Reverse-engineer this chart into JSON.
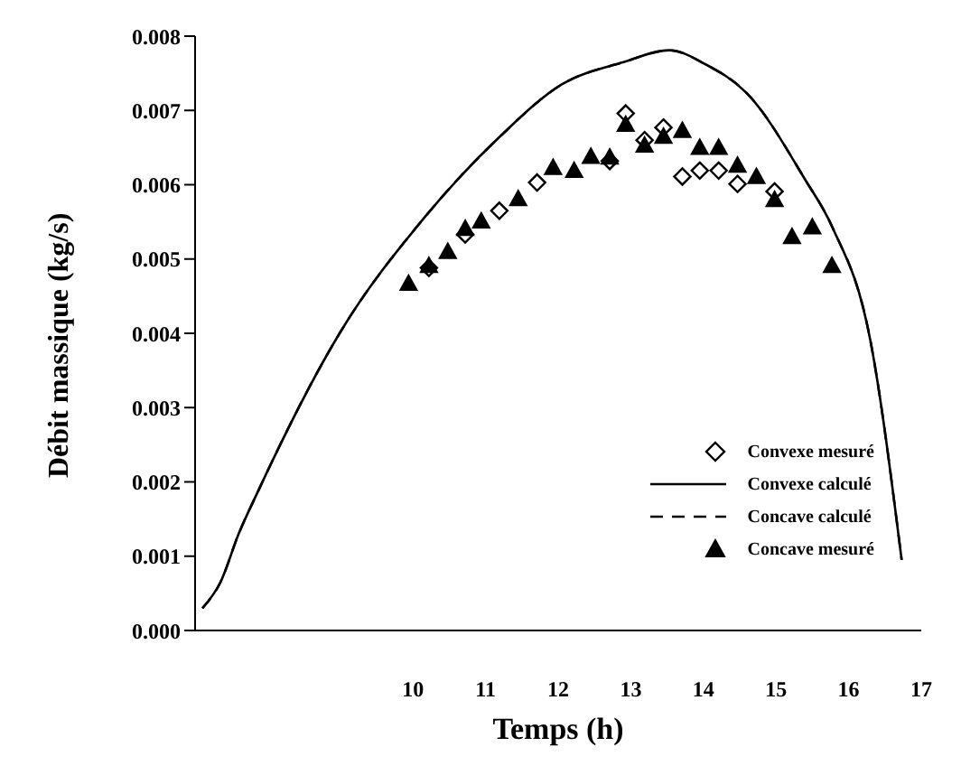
{
  "chart_data": {
    "type": "line",
    "xlabel": "Temps (h)",
    "ylabel": "Débit massique (kg/s)",
    "xlim": [
      7,
      17
    ],
    "xticks": [
      10,
      11,
      12,
      13,
      14,
      15,
      16,
      17
    ],
    "ylim": [
      0,
      0.008
    ],
    "yticks": [
      {
        "value": 0,
        "label": "0.000"
      },
      {
        "value": 0.001,
        "label": "0.001"
      },
      {
        "value": 0.002,
        "label": "0.002"
      },
      {
        "value": 0.003,
        "label": "0.003"
      },
      {
        "value": 0.004,
        "label": "0.004"
      },
      {
        "value": 0.005,
        "label": "0.005"
      },
      {
        "value": 0.006,
        "label": "0.006"
      },
      {
        "value": 0.007,
        "label": "0.007"
      },
      {
        "value": 0.008,
        "label": "0.008"
      }
    ],
    "grid": false,
    "legend": "bottom right",
    "series": [
      {
        "name": "Convexe mesuré",
        "type": "scatter",
        "marker": "diamond",
        "color": "#000000",
        "x": [
          10.22,
          10.72,
          11.19,
          11.71,
          12.71,
          12.93,
          13.19,
          13.45,
          13.71,
          13.95,
          14.21,
          14.47,
          14.98
        ],
        "values": [
          0.00488,
          0.00533,
          0.00565,
          0.00603,
          0.00632,
          0.00696,
          0.0066,
          0.00677,
          0.00611,
          0.00619,
          0.00619,
          0.00601,
          0.00591
        ]
      },
      {
        "name": "Convexe calculé",
        "type": "line",
        "line_style": "solid",
        "color": "#000000",
        "x": [
          7.1,
          7.35,
          7.6,
          7.87,
          8.99,
          10.16,
          11.2,
          12.05,
          12.9,
          13.53,
          14.03,
          14.6,
          15.4,
          15.77,
          16.3,
          16.73
        ],
        "values": [
          0.0003,
          0.00065,
          0.0013,
          0.00188,
          0.004,
          0.00556,
          0.00665,
          0.00735,
          0.00765,
          0.00781,
          0.00762,
          0.00723,
          0.00607,
          0.00544,
          0.0039,
          0.00095
        ]
      },
      {
        "name": "Concave calculé",
        "type": "line",
        "line_style": "dashed",
        "color": "#000000",
        "x": [
          7.1,
          7.35,
          7.6,
          7.87,
          8.99,
          10.16,
          11.2,
          12.05,
          12.9,
          13.53,
          14.03,
          14.6,
          15.4,
          15.77,
          16.3,
          16.73
        ],
        "values": [
          0.0003,
          0.00065,
          0.0013,
          0.00188,
          0.004,
          0.00556,
          0.00665,
          0.00735,
          0.00765,
          0.00781,
          0.00762,
          0.00723,
          0.00607,
          0.00544,
          0.0039,
          0.00095
        ]
      },
      {
        "name": "Concave mesuré",
        "type": "scatter",
        "marker": "triangle",
        "color": "#000000",
        "x": [
          9.94,
          10.22,
          10.48,
          10.72,
          10.94,
          11.45,
          11.93,
          12.22,
          12.45,
          12.71,
          12.93,
          13.19,
          13.45,
          13.71,
          13.95,
          14.21,
          14.47,
          14.73,
          14.98,
          15.22,
          15.5,
          15.77
        ],
        "values": [
          0.00467,
          0.00491,
          0.0051,
          0.00541,
          0.00551,
          0.00581,
          0.00623,
          0.00619,
          0.00638,
          0.00637,
          0.00681,
          0.00653,
          0.00665,
          0.00673,
          0.0065,
          0.0065,
          0.00626,
          0.00611,
          0.0058,
          0.0053,
          0.00543,
          0.00491
        ]
      }
    ]
  }
}
